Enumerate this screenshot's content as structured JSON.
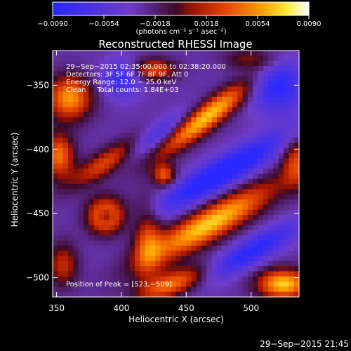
{
  "chart_data": {
    "type": "heatmap",
    "title": "Reconstructed RHESSI Image",
    "xlabel": "Heliocentric X (arcsec)",
    "ylabel": "Heliocentric Y (arcsec)",
    "xlim": [
      347,
      537
    ],
    "ylim": [
      -515,
      -323
    ],
    "xticks": [
      350,
      400,
      450,
      500
    ],
    "xtick_labels": [
      "350",
      "400",
      "450",
      "500"
    ],
    "yticks": [
      -350,
      -400,
      -450,
      -500
    ],
    "ytick_labels": [
      "−350",
      "−400",
      "−450",
      "−500"
    ],
    "colorbar": {
      "range": [
        -0.009,
        0.009
      ],
      "tick_labels": [
        "−0.0090",
        "−0.0054",
        "−0.0018",
        "0.0018",
        "0.0054",
        "0.0090"
      ],
      "units": "(photons cm⁻² s⁻¹ asec⁻²)"
    },
    "info_lines": [
      "29−Sep−2015 02:35:00.000 to 02:38:20.000",
      "Detectors: 3F 5F 6F 7F 8F 9F, Att 0",
      "Energy Range: 12.0 − 25.0 keV",
      "Clean     Total counts: 1.84E+03"
    ],
    "peak_label": "Position of Peak = [523,−509]",
    "features": [
      {
        "x": 465,
        "y": -375,
        "sx": 32,
        "sy": 7,
        "angle": -38,
        "amp": 1.0
      },
      {
        "x": 468,
        "y": -458,
        "sx": 40,
        "sy": 9,
        "angle": -30,
        "amp": 1.0
      },
      {
        "x": 388,
        "y": -452,
        "sx": 10,
        "sy": 10,
        "angle": 0,
        "amp": 0.9
      },
      {
        "x": 395,
        "y": -408,
        "sx": 25,
        "sy": 7,
        "angle": -30,
        "amp": 0.8
      },
      {
        "x": 360,
        "y": -360,
        "sx": 12,
        "sy": 12,
        "angle": 0,
        "amp": 0.85
      },
      {
        "x": 352,
        "y": -405,
        "sx": 8,
        "sy": 12,
        "angle": 0,
        "amp": 0.75
      },
      {
        "x": 425,
        "y": -338,
        "sx": 12,
        "sy": 6,
        "angle": 0,
        "amp": 0.6
      },
      {
        "x": 525,
        "y": -505,
        "sx": 14,
        "sy": 8,
        "angle": 0,
        "amp": 1.0
      },
      {
        "x": 440,
        "y": -505,
        "sx": 20,
        "sy": 7,
        "angle": -20,
        "amp": 0.75
      },
      {
        "x": 420,
        "y": -470,
        "sx": 8,
        "sy": 20,
        "angle": 0,
        "amp": 0.6
      },
      {
        "x": 535,
        "y": -410,
        "sx": 8,
        "sy": 14,
        "angle": 0,
        "amp": 0.55
      },
      {
        "x": 355,
        "y": -490,
        "sx": 8,
        "sy": 12,
        "angle": 0,
        "amp": 0.5
      },
      {
        "x": 500,
        "y": -330,
        "sx": 14,
        "sy": 6,
        "angle": 0,
        "amp": 0.4
      },
      {
        "x": 433,
        "y": -420,
        "sx": 6,
        "sy": 6,
        "angle": 0,
        "amp": 0.65
      },
      {
        "x": 388,
        "y": -452,
        "sx": 4,
        "sy": 4,
        "angle": 0,
        "amp": -0.5
      },
      {
        "x": 420,
        "y": -395,
        "sx": 25,
        "sy": 6,
        "angle": -35,
        "amp": -0.7
      },
      {
        "x": 478,
        "y": -418,
        "sx": 40,
        "sy": 8,
        "angle": -30,
        "amp": -0.8
      },
      {
        "x": 500,
        "y": -480,
        "sx": 30,
        "sy": 7,
        "angle": -30,
        "amp": -0.6
      },
      {
        "x": 400,
        "y": -345,
        "sx": 10,
        "sy": 10,
        "angle": 0,
        "amp": -0.5
      },
      {
        "x": 520,
        "y": -350,
        "sx": 15,
        "sy": 15,
        "angle": 0,
        "amp": -0.6
      }
    ],
    "base_level": -0.15
  },
  "footer": {
    "timestamp": "29−Sep−2015 21:45"
  }
}
